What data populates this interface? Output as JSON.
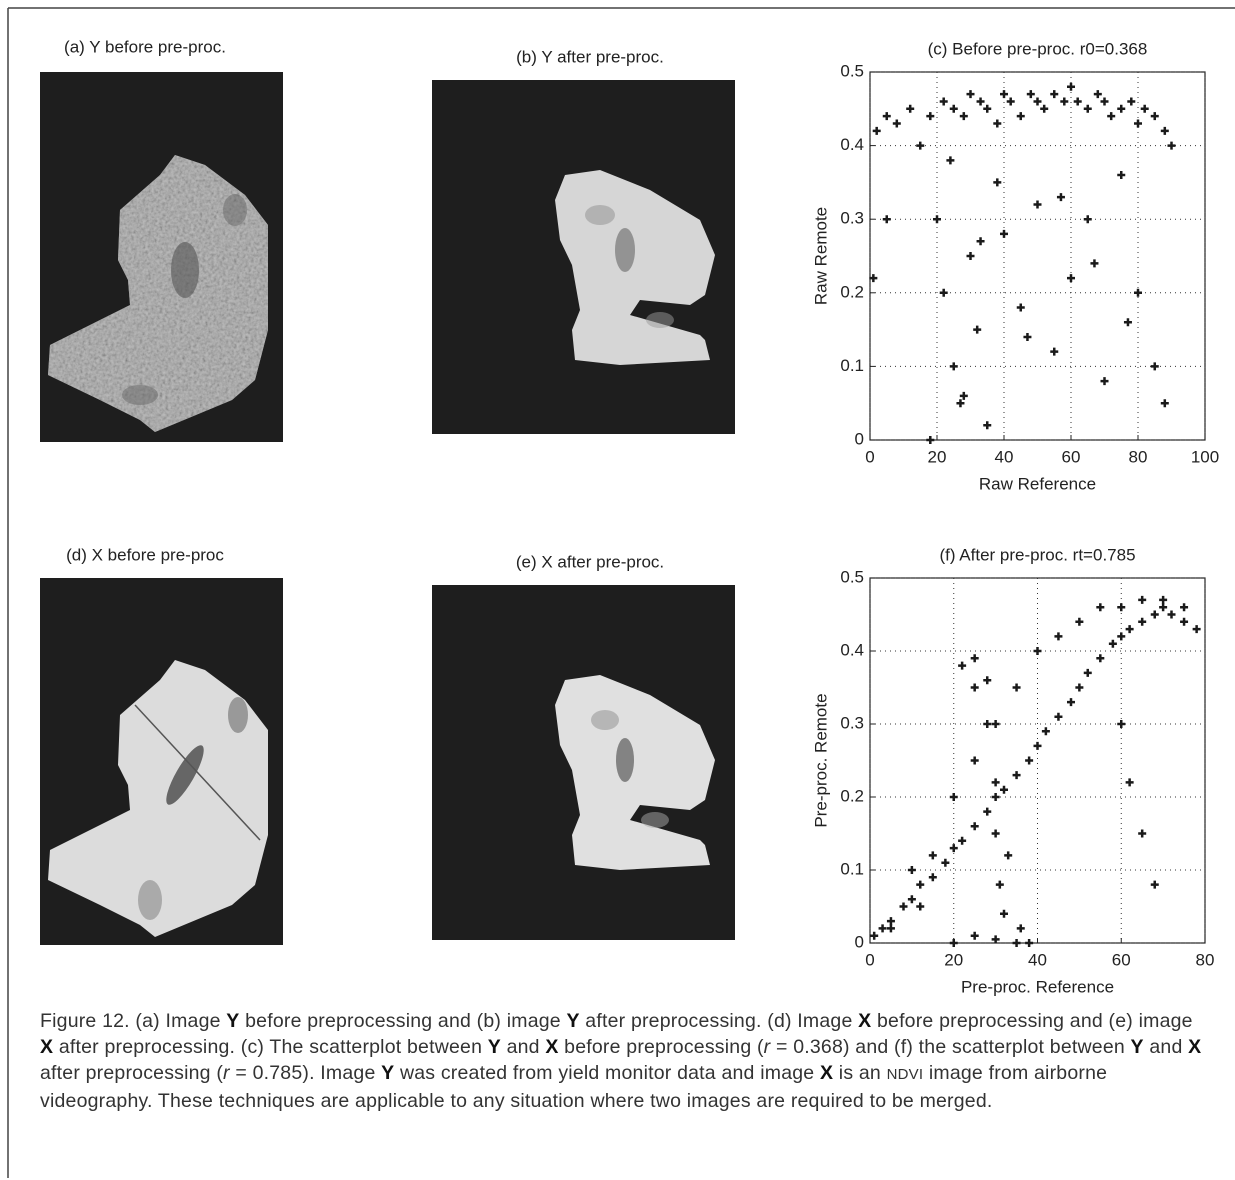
{
  "panels": [
    {
      "title": "(a) Y before pre-proc."
    },
    {
      "title": "(b) Y after pre-proc."
    },
    {
      "title": "(d) X before pre-proc"
    },
    {
      "title": "(e) X after pre-proc."
    }
  ],
  "chart_data": [
    {
      "type": "scatter",
      "title": "(c) Before pre-proc. r0=0.368",
      "x_label": "Raw Reference",
      "y_label": "Raw Remote",
      "color": "#1a1a1a",
      "grid": true,
      "xlim": [
        0,
        100
      ],
      "ylim": [
        0,
        0.5
      ],
      "xticks": [
        0,
        20,
        40,
        60,
        80,
        100
      ],
      "yticks": [
        0,
        0.1,
        0.2,
        0.3,
        0.4,
        0.5
      ],
      "x": [
        2,
        5,
        8,
        12,
        15,
        18,
        22,
        25,
        28,
        30,
        33,
        35,
        38,
        40,
        42,
        45,
        48,
        50,
        52,
        55,
        58,
        60,
        62,
        65,
        68,
        70,
        72,
        75,
        78,
        80,
        82,
        85,
        88,
        90,
        20,
        22,
        25,
        27,
        30,
        32,
        35,
        38,
        40,
        45,
        50,
        55,
        60,
        65,
        70,
        75,
        80,
        85,
        88,
        24,
        28,
        33,
        47,
        57,
        67,
        77,
        18,
        5,
        1
      ],
      "values": [
        0.42,
        0.44,
        0.43,
        0.45,
        0.4,
        0.44,
        0.46,
        0.45,
        0.44,
        0.47,
        0.46,
        0.45,
        0.43,
        0.47,
        0.46,
        0.44,
        0.47,
        0.46,
        0.45,
        0.47,
        0.46,
        0.48,
        0.46,
        0.45,
        0.47,
        0.46,
        0.44,
        0.45,
        0.46,
        0.43,
        0.45,
        0.44,
        0.42,
        0.4,
        0.3,
        0.2,
        0.1,
        0.05,
        0.25,
        0.15,
        0.02,
        0.35,
        0.28,
        0.18,
        0.32,
        0.12,
        0.22,
        0.3,
        0.08,
        0.36,
        0.2,
        0.1,
        0.05,
        0.38,
        0.06,
        0.27,
        0.14,
        0.33,
        0.24,
        0.16,
        0.0,
        0.3,
        0.22
      ]
    },
    {
      "type": "scatter",
      "title": "(f) After pre-proc. rt=0.785",
      "x_label": "Pre-proc. Reference",
      "y_label": "Pre-proc. Remote",
      "color": "#1a1a1a",
      "grid": true,
      "xlim": [
        0,
        80
      ],
      "ylim": [
        0,
        0.5
      ],
      "xticks": [
        0,
        20,
        40,
        60,
        80
      ],
      "yticks": [
        0,
        0.1,
        0.2,
        0.3,
        0.4,
        0.5
      ],
      "x": [
        1,
        3,
        5,
        8,
        10,
        12,
        15,
        18,
        20,
        22,
        25,
        28,
        30,
        32,
        35,
        38,
        40,
        42,
        45,
        48,
        50,
        52,
        55,
        58,
        60,
        62,
        65,
        68,
        70,
        72,
        75,
        78,
        20,
        25,
        30,
        35,
        40,
        45,
        50,
        55,
        60,
        65,
        70,
        75,
        22,
        25,
        28,
        30,
        33,
        36,
        30,
        31,
        32,
        35,
        38,
        20,
        25,
        30,
        60,
        62,
        65,
        68,
        25,
        28,
        10,
        15,
        12,
        5
      ],
      "values": [
        0.01,
        0.02,
        0.03,
        0.05,
        0.06,
        0.08,
        0.09,
        0.11,
        0.13,
        0.14,
        0.16,
        0.18,
        0.2,
        0.21,
        0.23,
        0.25,
        0.27,
        0.29,
        0.31,
        0.33,
        0.35,
        0.37,
        0.39,
        0.41,
        0.42,
        0.43,
        0.44,
        0.45,
        0.46,
        0.45,
        0.44,
        0.43,
        0.2,
        0.25,
        0.3,
        0.35,
        0.4,
        0.42,
        0.44,
        0.46,
        0.46,
        0.47,
        0.47,
        0.46,
        0.38,
        0.35,
        0.3,
        0.22,
        0.12,
        0.02,
        0.15,
        0.08,
        0.04,
        0.0,
        0.0,
        0.0,
        0.01,
        0.005,
        0.3,
        0.22,
        0.15,
        0.08,
        0.39,
        0.36,
        0.1,
        0.12,
        0.05,
        0.02
      ]
    }
  ],
  "caption": [
    {
      "text": "Figure 12. (a) Image "
    },
    {
      "text": "Y",
      "style": "bold"
    },
    {
      "text": " before preprocessing and (b) image "
    },
    {
      "text": "Y",
      "style": "bold"
    },
    {
      "text": " after preprocessing. (d) Image "
    },
    {
      "text": "X",
      "style": "bold"
    },
    {
      "text": " before preprocessing and (e) image "
    },
    {
      "text": "X",
      "style": "bold"
    },
    {
      "text": " after preprocessing. (c) The scatterplot between "
    },
    {
      "text": "Y",
      "style": "bold"
    },
    {
      "text": " and "
    },
    {
      "text": "X",
      "style": "bold"
    },
    {
      "text": " before preprocessing ("
    },
    {
      "text": "r",
      "style": "italic"
    },
    {
      "text": " = 0.368) and (f) the scatterplot between "
    },
    {
      "text": "Y",
      "style": "bold"
    },
    {
      "text": " and "
    },
    {
      "text": "X",
      "style": "bold"
    },
    {
      "text": " after preprocessing ("
    },
    {
      "text": "r",
      "style": "italic"
    },
    {
      "text": " = 0.785). Image "
    },
    {
      "text": "Y",
      "style": "bold"
    },
    {
      "text": " was created from yield monitor data and image "
    },
    {
      "text": "X",
      "style": "bold"
    },
    {
      "text": " is an "
    },
    {
      "text": "NDVI",
      "style": "smallcaps"
    },
    {
      "text": " image from airborne videography. These techniques are applicable to any situation where two images are required to be merged."
    }
  ]
}
